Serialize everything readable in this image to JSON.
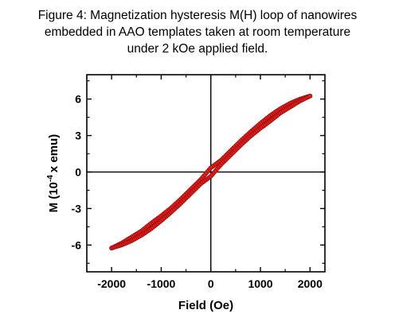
{
  "figure": {
    "caption_lines": [
      "Figure 4: Magnetization hysteresis M(H) loop of nanowires",
      "embedded in AAO templates taken at room temperature",
      "under 2 kOe applied field."
    ]
  },
  "chart_data": {
    "type": "scatter",
    "xlabel": "Field (Oe)",
    "ylabel_main": "M (10",
    "ylabel_exp": "-4",
    "ylabel_rest": "x emu)",
    "xlim": [
      -2500,
      2300
    ],
    "ylim": [
      -8.2,
      8.0
    ],
    "xticks": [
      -2000,
      -1000,
      0,
      1000,
      2000
    ],
    "xtick_labels": [
      "-2000",
      "-1000",
      "0",
      "1000",
      "2000"
    ],
    "yticks": [
      -6,
      -3,
      0,
      3,
      6
    ],
    "ytick_labels": [
      "-6",
      "-3",
      "0",
      "3",
      "6"
    ],
    "grid": false,
    "zero_lines": true,
    "marker_color": "#e0201b",
    "marker_edge_color": "#8b0000",
    "series": [
      {
        "branch": "descending",
        "x": [
          2000,
          1800,
          1600,
          1400,
          1200,
          1000,
          800,
          600,
          400,
          200,
          0,
          -200,
          -400,
          -600,
          -800,
          -1000,
          -1200,
          -1400,
          -1600,
          -1800,
          -2000
        ],
        "y": [
          6.25,
          6.0,
          5.65,
          5.2,
          4.65,
          4.0,
          3.3,
          2.55,
          1.75,
          0.95,
          0.35,
          -0.6,
          -1.4,
          -2.2,
          -2.95,
          -3.6,
          -4.2,
          -4.85,
          -5.35,
          -5.85,
          -6.25
        ]
      },
      {
        "branch": "ascending",
        "x": [
          -2000,
          -1800,
          -1600,
          -1400,
          -1200,
          -1000,
          -800,
          -600,
          -400,
          -200,
          0,
          200,
          400,
          600,
          800,
          1000,
          1200,
          1400,
          1600,
          1800,
          2000
        ],
        "y": [
          -6.25,
          -6.0,
          -5.65,
          -5.2,
          -4.65,
          -4.0,
          -3.3,
          -2.55,
          -1.75,
          -0.95,
          -0.35,
          0.6,
          1.4,
          2.2,
          2.95,
          3.6,
          4.2,
          4.85,
          5.35,
          5.85,
          6.25
        ]
      }
    ]
  }
}
